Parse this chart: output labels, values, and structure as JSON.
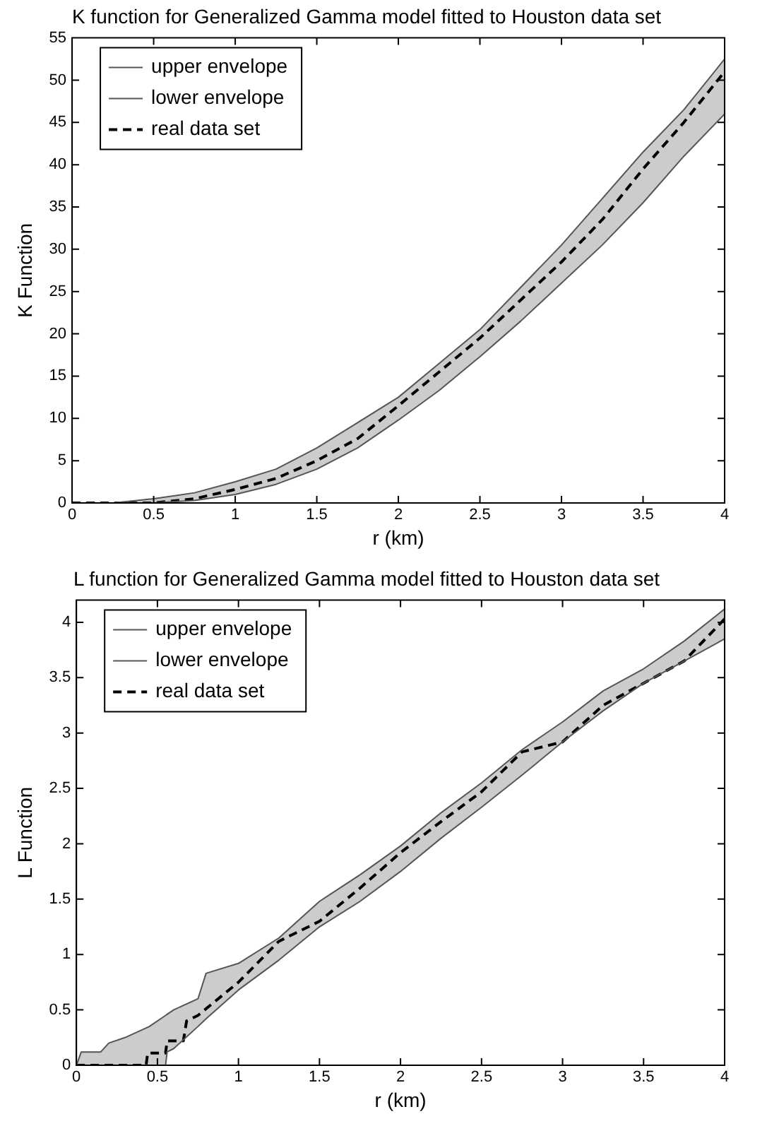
{
  "chart_data": [
    {
      "type": "line",
      "title": "K function for Generalized Gamma model fitted to Houston data set",
      "xlabel": "r (km)",
      "ylabel": "K Function",
      "xlim": [
        0,
        4
      ],
      "xticks": [
        0,
        0.5,
        1,
        1.5,
        2,
        2.5,
        3,
        3.5,
        4
      ],
      "ylim": [
        0,
        55
      ],
      "yticks": [
        0,
        5,
        10,
        15,
        20,
        25,
        30,
        35,
        40,
        45,
        50,
        55
      ],
      "legend": "top left",
      "grid": false,
      "marker": "none",
      "series": [
        {
          "name": "upper envelope",
          "color": "#555555",
          "line_style": "solid",
          "x": [
            0,
            0.25,
            0.5,
            0.75,
            1,
            1.25,
            1.5,
            1.75,
            2,
            2.25,
            2.5,
            2.75,
            3,
            3.25,
            3.5,
            3.75,
            4
          ],
          "values": [
            0,
            0,
            0.5,
            1.2,
            2.5,
            4,
            6.5,
            9.5,
            12.5,
            16.5,
            20.5,
            25.5,
            30.5,
            36,
            41.5,
            46.5,
            52.5
          ]
        },
        {
          "name": "lower envelope",
          "color": "#555555",
          "line_style": "solid",
          "x": [
            0,
            0.25,
            0.5,
            0.75,
            1,
            1.25,
            1.5,
            1.75,
            2,
            2.25,
            2.5,
            2.75,
            3,
            3.25,
            3.5,
            3.75,
            4
          ],
          "values": [
            0,
            0,
            0,
            0.3,
            1,
            2.2,
            4,
            6.5,
            9.8,
            13.3,
            17.3,
            21.5,
            26,
            30.5,
            35.5,
            41,
            46
          ]
        },
        {
          "name": "real data set",
          "color": "#000000",
          "line_style": "dashed",
          "x": [
            0,
            0.25,
            0.5,
            0.75,
            1,
            1.25,
            1.5,
            1.75,
            2,
            2.25,
            2.5,
            2.75,
            3,
            3.25,
            3.5,
            3.75,
            4
          ],
          "values": [
            0,
            0,
            0,
            0.5,
            1.6,
            2.9,
            5,
            7.6,
            11.5,
            15.5,
            19.5,
            24,
            28.5,
            33.5,
            39.5,
            45,
            51
          ]
        }
      ]
    },
    {
      "type": "line",
      "title": "L function for Generalized Gamma model fitted to Houston data set",
      "xlabel": "r (km)",
      "ylabel": "L Function",
      "xlim": [
        0,
        4
      ],
      "xticks": [
        0,
        0.5,
        1,
        1.5,
        2,
        2.5,
        3,
        3.5,
        4
      ],
      "ylim": [
        0,
        4.2
      ],
      "yticks": [
        0,
        0.5,
        1,
        1.5,
        2,
        2.5,
        3,
        3.5,
        4
      ],
      "legend": "top left",
      "grid": false,
      "marker": "none",
      "series": [
        {
          "name": "upper envelope",
          "color": "#555555",
          "line_style": "solid",
          "x": [
            0,
            0.03,
            0.15,
            0.2,
            0.3,
            0.45,
            0.55,
            0.56,
            0.6,
            0.75,
            0.8,
            1,
            1.25,
            1.5,
            1.75,
            2,
            2.25,
            2.5,
            2.75,
            3,
            3.25,
            3.5,
            3.75,
            4
          ],
          "values": [
            0,
            0.12,
            0.12,
            0.2,
            0.25,
            0.35,
            0.45,
            0.46,
            0.5,
            0.6,
            0.83,
            0.92,
            1.15,
            1.48,
            1.72,
            1.98,
            2.28,
            2.55,
            2.85,
            3.1,
            3.38,
            3.58,
            3.83,
            4.12
          ]
        },
        {
          "name": "lower envelope",
          "color": "#555555",
          "line_style": "solid",
          "x": [
            0,
            0.03,
            0.15,
            0.2,
            0.3,
            0.45,
            0.55,
            0.56,
            0.6,
            0.75,
            0.8,
            1,
            1.25,
            1.5,
            1.75,
            2,
            2.25,
            2.5,
            2.75,
            3,
            3.25,
            3.5,
            3.75,
            4
          ],
          "values": [
            0,
            0,
            0,
            0,
            0,
            0,
            0,
            0.12,
            0.15,
            0.35,
            0.42,
            0.68,
            0.95,
            1.25,
            1.48,
            1.75,
            2.05,
            2.33,
            2.62,
            2.92,
            3.2,
            3.45,
            3.65,
            3.85
          ]
        },
        {
          "name": "real data set",
          "color": "#000000",
          "line_style": "dashed",
          "x": [
            0,
            0.43,
            0.44,
            0.55,
            0.56,
            0.66,
            0.68,
            0.75,
            1,
            1.25,
            1.5,
            1.75,
            2,
            2.25,
            2.5,
            2.75,
            3,
            3.25,
            3.5,
            3.75,
            4
          ],
          "values": [
            0,
            0,
            0.11,
            0.11,
            0.22,
            0.22,
            0.4,
            0.45,
            0.75,
            1.12,
            1.3,
            1.6,
            1.92,
            2.2,
            2.47,
            2.83,
            2.92,
            3.25,
            3.45,
            3.65,
            4.03
          ]
        }
      ]
    }
  ]
}
